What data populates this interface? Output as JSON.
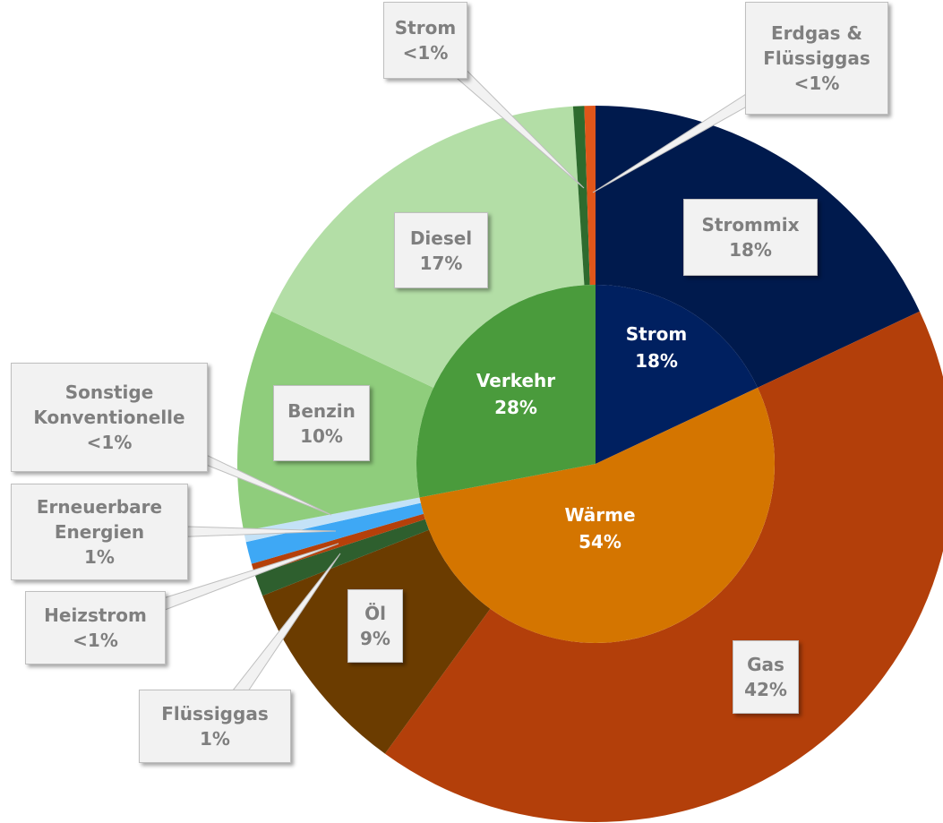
{
  "chart_data": {
    "type": "sunburst",
    "inner": {
      "categories": [
        "Strom",
        "Wärme",
        "Verkehr"
      ],
      "values": [
        18,
        54,
        28
      ],
      "value_labels": [
        "18%",
        "54%",
        "28%"
      ],
      "colors": [
        "#002060",
        "#d47500",
        "#4a9b3c"
      ]
    },
    "outer": {
      "categories": [
        "Strommix",
        "Gas",
        "Öl",
        "Flüssiggas",
        "Heizstrom",
        "Erneuerbare Energien",
        "Sonstige Konventionelle",
        "Benzin",
        "Diesel",
        "Strom",
        "Erdgas & Flüssiggas"
      ],
      "values": [
        18,
        42,
        9,
        1,
        0.5,
        1,
        0.5,
        10,
        17,
        0.5,
        0.5
      ],
      "value_labels": [
        "18%",
        "42%",
        "9%",
        "1%",
        "<1%",
        "1%",
        "<1%",
        "10%",
        "17%",
        "<1%",
        "<1%"
      ],
      "colors": [
        "#001a4d",
        "#b33f0a",
        "#6b3c00",
        "#2e5f2e",
        "#b5400a",
        "#3ea8f5",
        "#c4e2f7",
        "#8fcd7c",
        "#b3dea6",
        "#2e6b2e",
        "#e0561a"
      ]
    }
  }
}
